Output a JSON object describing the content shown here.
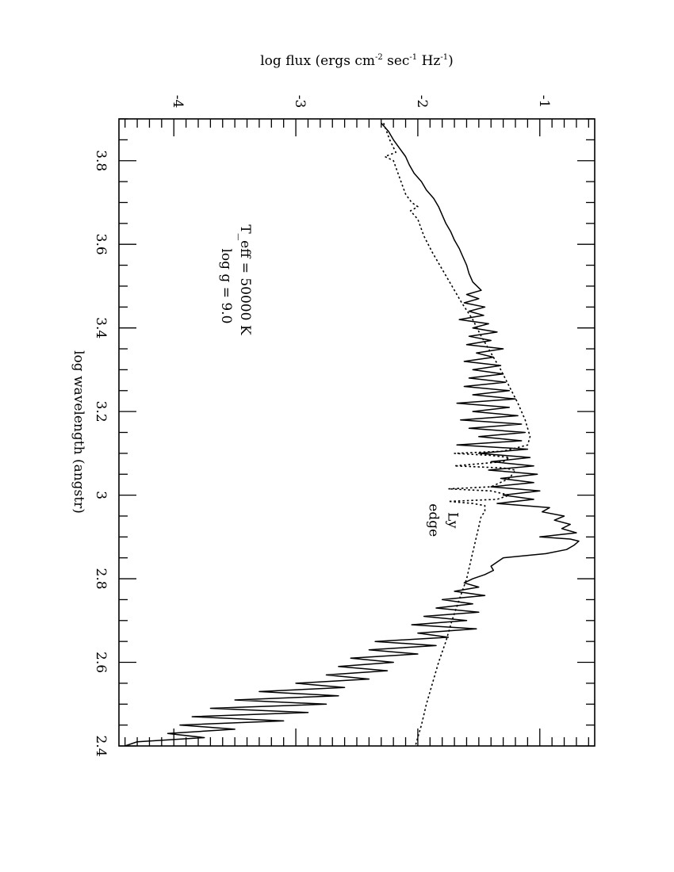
{
  "chart_data": {
    "type": "line",
    "orientation": "rotated-90-clockwise",
    "title": "",
    "xlabel": "log wavelength (angstr)",
    "ylabel": "log flux (ergs cm{-2} sec{-1} Hz{-1})",
    "ylabel_parts": {
      "base": "log flux (ergs cm",
      "sup1": "-2",
      "mid1": " sec",
      "sup2": "-1",
      "mid2": " Hz",
      "sup3": "-1",
      "end": ")"
    },
    "xlim": [
      2.4,
      3.9
    ],
    "ylim": [
      -4.45,
      -0.55
    ],
    "x_ticks": [
      "2.4",
      "2.6",
      "2.8",
      "3",
      "3.2",
      "3.4",
      "3.6",
      "3.8"
    ],
    "y_ticks": [
      "-4",
      "-3",
      "-2",
      "-1"
    ],
    "annotations": [
      {
        "lines": [
          "T_eff = 50000 K",
          "log g = 9.0"
        ],
        "x": 3.5,
        "y": -3.45
      },
      {
        "lines": [
          "Ly",
          "edge"
        ],
        "x": 2.94,
        "y": -1.75
      }
    ],
    "series": [
      {
        "style": "solid",
        "points": [
          [
            3.89,
            -2.3
          ],
          [
            3.87,
            -2.24
          ],
          [
            3.85,
            -2.2
          ],
          [
            3.83,
            -2.15
          ],
          [
            3.81,
            -2.1
          ],
          [
            3.79,
            -2.07
          ],
          [
            3.77,
            -2.03
          ],
          [
            3.75,
            -1.97
          ],
          [
            3.73,
            -1.93
          ],
          [
            3.71,
            -1.87
          ],
          [
            3.69,
            -1.83
          ],
          [
            3.67,
            -1.8
          ],
          [
            3.65,
            -1.77
          ],
          [
            3.63,
            -1.73
          ],
          [
            3.61,
            -1.7
          ],
          [
            3.59,
            -1.66
          ],
          [
            3.57,
            -1.63
          ],
          [
            3.55,
            -1.6
          ],
          [
            3.53,
            -1.58
          ],
          [
            3.51,
            -1.55
          ],
          [
            3.49,
            -1.48
          ],
          [
            3.48,
            -1.6
          ],
          [
            3.47,
            -1.5
          ],
          [
            3.46,
            -1.62
          ],
          [
            3.45,
            -1.45
          ],
          [
            3.44,
            -1.58
          ],
          [
            3.43,
            -1.46
          ],
          [
            3.42,
            -1.66
          ],
          [
            3.41,
            -1.42
          ],
          [
            3.4,
            -1.55
          ],
          [
            3.39,
            -1.35
          ],
          [
            3.38,
            -1.58
          ],
          [
            3.37,
            -1.4
          ],
          [
            3.36,
            -1.6
          ],
          [
            3.35,
            -1.3
          ],
          [
            3.34,
            -1.52
          ],
          [
            3.33,
            -1.38
          ],
          [
            3.32,
            -1.62
          ],
          [
            3.31,
            -1.32
          ],
          [
            3.3,
            -1.55
          ],
          [
            3.29,
            -1.3
          ],
          [
            3.28,
            -1.58
          ],
          [
            3.27,
            -1.28
          ],
          [
            3.26,
            -1.62
          ],
          [
            3.25,
            -1.25
          ],
          [
            3.24,
            -1.55
          ],
          [
            3.23,
            -1.2
          ],
          [
            3.22,
            -1.68
          ],
          [
            3.21,
            -1.25
          ],
          [
            3.2,
            -1.55
          ],
          [
            3.19,
            -1.18
          ],
          [
            3.18,
            -1.65
          ],
          [
            3.17,
            -1.15
          ],
          [
            3.16,
            -1.58
          ],
          [
            3.15,
            -1.12
          ],
          [
            3.14,
            -1.5
          ],
          [
            3.13,
            -1.15
          ],
          [
            3.12,
            -1.68
          ],
          [
            3.11,
            -1.1
          ],
          [
            3.1,
            -1.5
          ],
          [
            3.09,
            -1.08
          ],
          [
            3.08,
            -1.4
          ],
          [
            3.07,
            -1.05
          ],
          [
            3.06,
            -1.42
          ],
          [
            3.05,
            -1.02
          ],
          [
            3.04,
            -1.32
          ],
          [
            3.03,
            -1.05
          ],
          [
            3.02,
            -1.4
          ],
          [
            3.01,
            -1.0
          ],
          [
            3.0,
            -1.3
          ],
          [
            2.99,
            -1.05
          ],
          [
            2.98,
            -1.35
          ],
          [
            2.97,
            -0.92
          ],
          [
            2.96,
            -0.98
          ],
          [
            2.95,
            -0.8
          ],
          [
            2.94,
            -0.88
          ],
          [
            2.93,
            -0.75
          ],
          [
            2.92,
            -0.82
          ],
          [
            2.91,
            -0.7
          ],
          [
            2.9,
            -1.0
          ],
          [
            2.895,
            -0.75
          ],
          [
            2.89,
            -0.68
          ],
          [
            2.88,
            -0.72
          ],
          [
            2.87,
            -0.78
          ],
          [
            2.86,
            -0.95
          ],
          [
            2.85,
            -1.3
          ],
          [
            2.84,
            -1.35
          ],
          [
            2.83,
            -1.4
          ],
          [
            2.82,
            -1.38
          ],
          [
            2.81,
            -1.45
          ],
          [
            2.8,
            -1.55
          ],
          [
            2.79,
            -1.62
          ],
          [
            2.78,
            -1.5
          ],
          [
            2.77,
            -1.7
          ],
          [
            2.76,
            -1.45
          ],
          [
            2.75,
            -1.8
          ],
          [
            2.74,
            -1.55
          ],
          [
            2.73,
            -1.85
          ],
          [
            2.72,
            -1.5
          ],
          [
            2.71,
            -1.95
          ],
          [
            2.7,
            -1.6
          ],
          [
            2.69,
            -2.05
          ],
          [
            2.68,
            -1.52
          ],
          [
            2.67,
            -2.0
          ],
          [
            2.66,
            -1.75
          ],
          [
            2.65,
            -2.35
          ],
          [
            2.64,
            -1.85
          ],
          [
            2.63,
            -2.4
          ],
          [
            2.62,
            -2.0
          ],
          [
            2.61,
            -2.55
          ],
          [
            2.6,
            -2.2
          ],
          [
            2.59,
            -2.65
          ],
          [
            2.58,
            -2.25
          ],
          [
            2.57,
            -2.75
          ],
          [
            2.56,
            -2.4
          ],
          [
            2.55,
            -3.0
          ],
          [
            2.54,
            -2.6
          ],
          [
            2.53,
            -3.3
          ],
          [
            2.52,
            -2.65
          ],
          [
            2.51,
            -3.5
          ],
          [
            2.5,
            -2.75
          ],
          [
            2.49,
            -3.7
          ],
          [
            2.48,
            -2.9
          ],
          [
            2.47,
            -3.85
          ],
          [
            2.46,
            -3.1
          ],
          [
            2.45,
            -3.95
          ],
          [
            2.44,
            -3.5
          ],
          [
            2.43,
            -4.05
          ],
          [
            2.42,
            -3.75
          ],
          [
            2.41,
            -4.3
          ],
          [
            2.4,
            -4.4
          ]
        ]
      },
      {
        "style": "dotted",
        "points": [
          [
            3.89,
            -2.28
          ],
          [
            3.85,
            -2.23
          ],
          [
            3.82,
            -2.18
          ],
          [
            3.81,
            -2.27
          ],
          [
            3.8,
            -2.2
          ],
          [
            3.76,
            -2.15
          ],
          [
            3.72,
            -2.1
          ],
          [
            3.7,
            -2.05
          ],
          [
            3.69,
            -2.0
          ],
          [
            3.68,
            -2.06
          ],
          [
            3.66,
            -2.0
          ],
          [
            3.62,
            -1.95
          ],
          [
            3.58,
            -1.88
          ],
          [
            3.54,
            -1.8
          ],
          [
            3.5,
            -1.72
          ],
          [
            3.46,
            -1.64
          ],
          [
            3.42,
            -1.55
          ],
          [
            3.38,
            -1.48
          ],
          [
            3.34,
            -1.4
          ],
          [
            3.3,
            -1.32
          ],
          [
            3.26,
            -1.25
          ],
          [
            3.22,
            -1.18
          ],
          [
            3.18,
            -1.12
          ],
          [
            3.14,
            -1.08
          ],
          [
            3.12,
            -1.1
          ],
          [
            3.105,
            -1.3
          ],
          [
            3.1,
            -1.7
          ],
          [
            3.095,
            -1.4
          ],
          [
            3.09,
            -1.25
          ],
          [
            3.08,
            -1.3
          ],
          [
            3.07,
            -1.7
          ],
          [
            3.065,
            -1.3
          ],
          [
            3.06,
            -1.2
          ],
          [
            3.04,
            -1.25
          ],
          [
            3.02,
            -1.4
          ],
          [
            3.015,
            -1.75
          ],
          [
            3.01,
            -1.4
          ],
          [
            3.0,
            -1.25
          ],
          [
            2.99,
            -1.35
          ],
          [
            2.985,
            -1.75
          ],
          [
            2.98,
            -1.55
          ],
          [
            2.975,
            -1.45
          ],
          [
            2.96,
            -1.45
          ],
          [
            2.95,
            -1.48
          ],
          [
            2.9,
            -1.52
          ],
          [
            2.85,
            -1.56
          ],
          [
            2.8,
            -1.6
          ],
          [
            2.75,
            -1.66
          ],
          [
            2.7,
            -1.72
          ],
          [
            2.65,
            -1.77
          ],
          [
            2.6,
            -1.83
          ],
          [
            2.55,
            -1.88
          ],
          [
            2.5,
            -1.93
          ],
          [
            2.45,
            -1.97
          ],
          [
            2.4,
            -2.02
          ]
        ]
      }
    ]
  }
}
